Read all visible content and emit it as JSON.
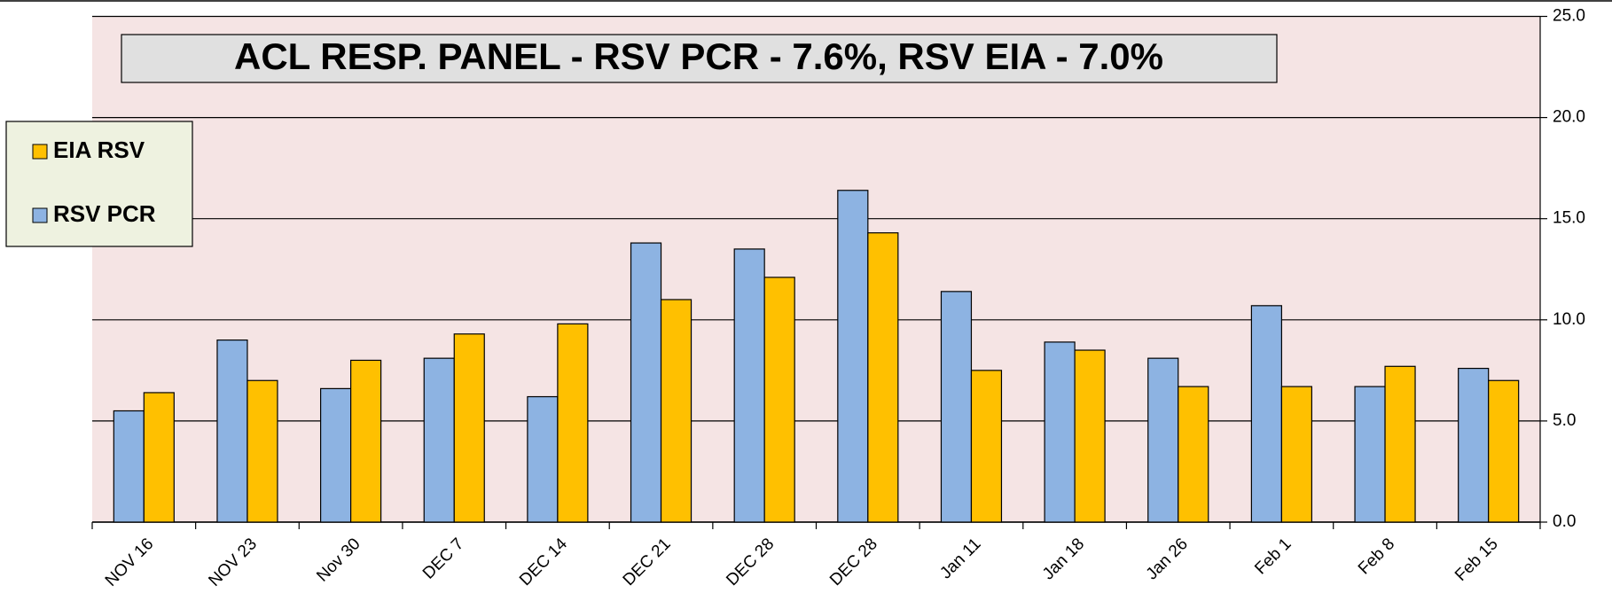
{
  "chart_data": {
    "type": "bar",
    "title": "ACL RESP. PANEL -  RSV PCR - 7.6%, RSV EIA - 7.0%",
    "categories": [
      "NOV 16",
      "NOV 23",
      "Nov 30",
      "DEC 7",
      "DEC 14",
      "DEC 21",
      "DEC 28",
      "DEC 28",
      "Jan 11",
      "Jan 18",
      "Jan 26",
      "Feb 1",
      "Feb 8",
      "Feb 15"
    ],
    "series": [
      {
        "name": "RSV PCR",
        "color": "#8db3e2",
        "values": [
          5.5,
          9.0,
          6.6,
          8.1,
          6.2,
          13.8,
          13.5,
          16.4,
          11.4,
          8.9,
          8.1,
          10.7,
          6.7,
          7.6
        ]
      },
      {
        "name": "EIA RSV",
        "color": "#ffc000",
        "values": [
          6.4,
          7.0,
          8.0,
          9.3,
          9.8,
          11.0,
          12.1,
          14.3,
          7.5,
          8.5,
          6.7,
          6.7,
          7.7,
          7.0
        ]
      }
    ],
    "ylim": [
      0,
      25
    ],
    "yticks": [
      {
        "value": 0,
        "label": "0.0"
      },
      {
        "value": 5,
        "label": "5.0"
      },
      {
        "value": 10,
        "label": "10.0"
      },
      {
        "value": 15,
        "label": "15.0"
      },
      {
        "value": 20,
        "label": "20.0"
      },
      {
        "value": 25,
        "label": "25.0"
      }
    ],
    "grid": true,
    "legend": "left"
  }
}
